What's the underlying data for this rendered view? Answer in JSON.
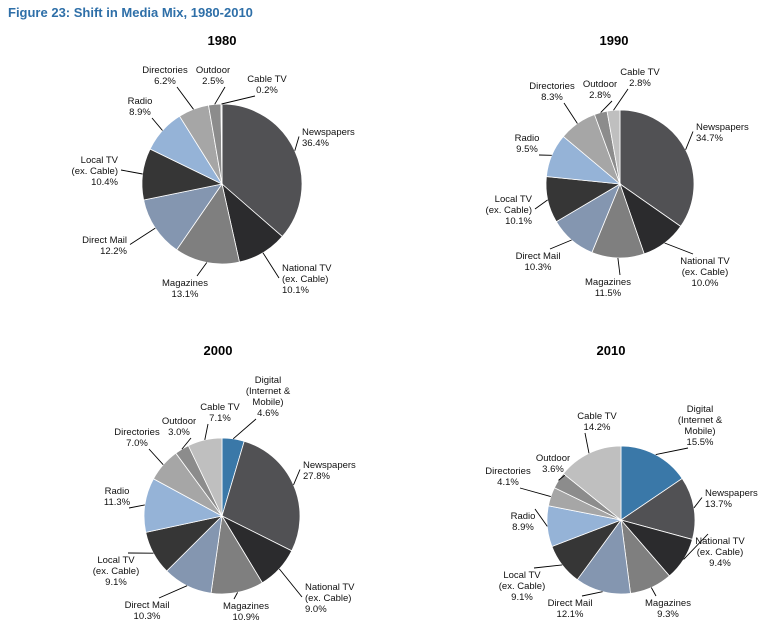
{
  "figure_title": "Figure 23: Shift in Media Mix, 1980-2010",
  "colors": {
    "Newspapers": "#515154",
    "National TV": "#2b2b2d",
    "Magazines": "#7f7f7f",
    "Direct Mail": "#8496b0",
    "Local TV": "#363636",
    "Radio": "#95b3d7",
    "Directories": "#a6a6a6",
    "Outdoor": "#8c8c8c",
    "Cable TV": "#bfbfbf",
    "Digital": "#3a78a8"
  },
  "chart_data": [
    {
      "type": "pie",
      "title": "1980",
      "slices": [
        {
          "category": "Newspapers",
          "label": [
            "Newspapers"
          ],
          "value": 36.4,
          "value_label": "36.4%"
        },
        {
          "category": "National TV",
          "label": [
            "National TV",
            "(ex. Cable)"
          ],
          "value": 10.1,
          "value_label": "10.1%"
        },
        {
          "category": "Magazines",
          "label": [
            "Magazines"
          ],
          "value": 13.1,
          "value_label": "13.1%"
        },
        {
          "category": "Direct Mail",
          "label": [
            "Direct Mail"
          ],
          "value": 12.2,
          "value_label": "12.2%"
        },
        {
          "category": "Local TV",
          "label": [
            "Local TV",
            "(ex. Cable)"
          ],
          "value": 10.4,
          "value_label": "10.4%"
        },
        {
          "category": "Radio",
          "label": [
            "Radio"
          ],
          "value": 8.9,
          "value_label": "8.9%"
        },
        {
          "category": "Directories",
          "label": [
            "Directories"
          ],
          "value": 6.2,
          "value_label": "6.2%"
        },
        {
          "category": "Outdoor",
          "label": [
            "Outdoor"
          ],
          "value": 2.5,
          "value_label": "2.5%"
        },
        {
          "category": "Cable TV",
          "label": [
            "Cable TV"
          ],
          "value": 0.2,
          "value_label": "0.2%"
        }
      ]
    },
    {
      "type": "pie",
      "title": "1990",
      "slices": [
        {
          "category": "Newspapers",
          "label": [
            "Newspapers"
          ],
          "value": 34.7,
          "value_label": "34.7%"
        },
        {
          "category": "National TV",
          "label": [
            "National TV",
            "(ex. Cable)"
          ],
          "value": 10.0,
          "value_label": "10.0%"
        },
        {
          "category": "Magazines",
          "label": [
            "Magazines"
          ],
          "value": 11.5,
          "value_label": "11.5%"
        },
        {
          "category": "Direct Mail",
          "label": [
            "Direct Mail"
          ],
          "value": 10.3,
          "value_label": "10.3%"
        },
        {
          "category": "Local TV",
          "label": [
            "Local TV",
            "(ex. Cable)"
          ],
          "value": 10.1,
          "value_label": "10.1%"
        },
        {
          "category": "Radio",
          "label": [
            "Radio"
          ],
          "value": 9.5,
          "value_label": "9.5%"
        },
        {
          "category": "Directories",
          "label": [
            "Directories"
          ],
          "value": 8.3,
          "value_label": "8.3%"
        },
        {
          "category": "Outdoor",
          "label": [
            "Outdoor"
          ],
          "value": 2.8,
          "value_label": "2.8%"
        },
        {
          "category": "Cable TV",
          "label": [
            "Cable TV"
          ],
          "value": 2.8,
          "value_label": "2.8%"
        }
      ]
    },
    {
      "type": "pie",
      "title": "2000",
      "slices": [
        {
          "category": "Digital",
          "label": [
            "Digital",
            "(Internet &",
            "Mobile)"
          ],
          "value": 4.6,
          "value_label": "4.6%"
        },
        {
          "category": "Newspapers",
          "label": [
            "Newspapers"
          ],
          "value": 27.8,
          "value_label": "27.8%"
        },
        {
          "category": "National TV",
          "label": [
            "National TV",
            "(ex. Cable)"
          ],
          "value": 9.0,
          "value_label": "9.0%"
        },
        {
          "category": "Magazines",
          "label": [
            "Magazines"
          ],
          "value": 10.9,
          "value_label": "10.9%"
        },
        {
          "category": "Direct Mail",
          "label": [
            "Direct Mail"
          ],
          "value": 10.3,
          "value_label": "10.3%"
        },
        {
          "category": "Local TV",
          "label": [
            "Local TV",
            "(ex. Cable)"
          ],
          "value": 9.1,
          "value_label": "9.1%"
        },
        {
          "category": "Radio",
          "label": [
            "Radio"
          ],
          "value": 11.3,
          "value_label": "11.3%"
        },
        {
          "category": "Directories",
          "label": [
            "Directories"
          ],
          "value": 7.0,
          "value_label": "7.0%"
        },
        {
          "category": "Outdoor",
          "label": [
            "Outdoor"
          ],
          "value": 3.0,
          "value_label": "3.0%"
        },
        {
          "category": "Cable TV",
          "label": [
            "Cable TV"
          ],
          "value": 7.1,
          "value_label": "7.1%"
        }
      ]
    },
    {
      "type": "pie",
      "title": "2010",
      "slices": [
        {
          "category": "Digital",
          "label": [
            "Digital",
            "(Internet &",
            "Mobile)"
          ],
          "value": 15.5,
          "value_label": "15.5%"
        },
        {
          "category": "Newspapers",
          "label": [
            "Newspapers"
          ],
          "value": 13.7,
          "value_label": "13.7%"
        },
        {
          "category": "National TV",
          "label": [
            "National TV",
            "(ex. Cable)"
          ],
          "value": 9.4,
          "value_label": "9.4%"
        },
        {
          "category": "Magazines",
          "label": [
            "Magazines"
          ],
          "value": 9.3,
          "value_label": "9.3%"
        },
        {
          "category": "Direct Mail",
          "label": [
            "Direct Mail"
          ],
          "value": 12.1,
          "value_label": "12.1%"
        },
        {
          "category": "Local TV",
          "label": [
            "Local TV",
            "(ex. Cable)"
          ],
          "value": 9.1,
          "value_label": "9.1%"
        },
        {
          "category": "Radio",
          "label": [
            "Radio"
          ],
          "value": 8.9,
          "value_label": "8.9%"
        },
        {
          "category": "Directories",
          "label": [
            "Directories"
          ],
          "value": 4.1,
          "value_label": "4.1%"
        },
        {
          "category": "Outdoor",
          "label": [
            "Outdoor"
          ],
          "value": 3.6,
          "value_label": "3.6%"
        },
        {
          "category": "Cable TV",
          "label": [
            "Cable TV"
          ],
          "value": 14.2,
          "value_label": "14.2%"
        }
      ]
    }
  ]
}
